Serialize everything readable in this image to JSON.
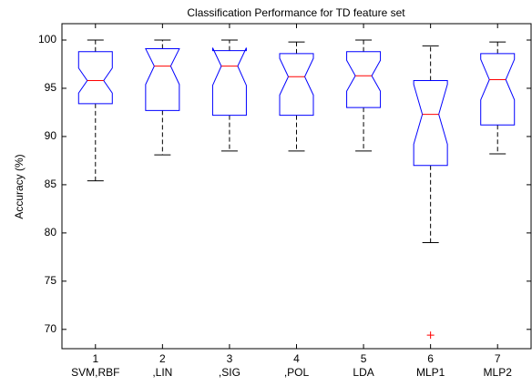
{
  "chart_data": {
    "type": "boxplot",
    "title": "Classification Performance for TD feature set",
    "y_label": "Accuracy (%)",
    "categories": [
      "SVM,RBF",
      ",LIN",
      ",SIG",
      ",POL",
      "LDA",
      "MLP1",
      "MLP2"
    ],
    "xticks": [
      1,
      2,
      3,
      4,
      5,
      6,
      7
    ],
    "xlim": [
      0.5,
      7.5
    ],
    "whisker_low": [
      85.4,
      88.1,
      88.5,
      88.5,
      88.5,
      79.0,
      88.2
    ],
    "q1": [
      93.4,
      92.7,
      92.2,
      92.2,
      93.0,
      87.0,
      91.2
    ],
    "notch_low": [
      94.5,
      95.4,
      95.3,
      94.3,
      94.7,
      89.2,
      93.8
    ],
    "median": [
      95.8,
      97.3,
      97.3,
      96.2,
      96.3,
      92.3,
      95.9
    ],
    "notch_high": [
      97.1,
      99.1,
      99.2,
      98.1,
      97.9,
      95.4,
      98.0
    ],
    "q3": [
      98.8,
      99.1,
      98.9,
      98.6,
      98.8,
      95.8,
      98.6
    ],
    "whisker_high": [
      100,
      100,
      100,
      99.8,
      100,
      99.4,
      99.8
    ],
    "outliers": [
      [],
      [],
      [],
      [],
      [],
      [
        69.4
      ],
      []
    ],
    "ylim": [
      68,
      101.7
    ],
    "yticks": [
      70,
      75,
      80,
      85,
      90,
      95,
      100
    ],
    "box_color": "#0000ff",
    "median_color": "#ff0000",
    "whisker_color": "#000000",
    "outlier_color": "#ff0000"
  }
}
